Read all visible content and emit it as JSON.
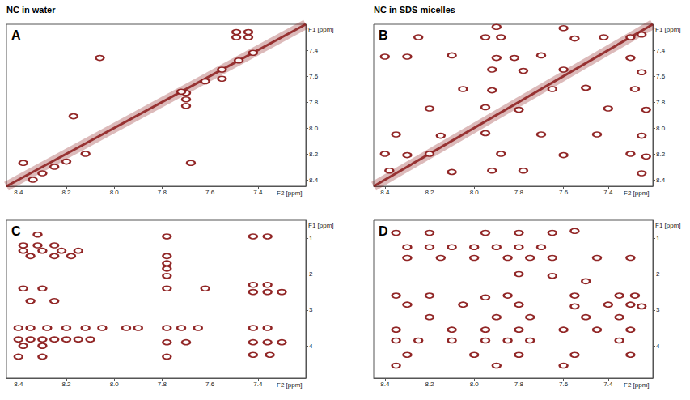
{
  "column_titles": [
    "NC in water",
    "NC in SDS micelles"
  ],
  "chart_data": [
    {
      "type": "scatter",
      "label": "A",
      "color": "#8b1a1a",
      "grid": false,
      "x_label": "F2 [ppm]",
      "y_label": "F1 [ppm]",
      "xlim": [
        7.2,
        8.45
      ],
      "xticks": [
        8.4,
        8.2,
        {
          "value": 8.0,
          "label": "8.0"
        },
        7.8,
        7.6,
        7.4
      ],
      "ylim": [
        7.2,
        8.45
      ],
      "yticks": [
        7.4,
        7.6,
        7.8,
        {
          "value": 8.0,
          "label": "8.0"
        },
        8.2,
        8.4
      ],
      "diagonal": [
        [
          8.45,
          8.45
        ],
        [
          7.2,
          7.2
        ]
      ],
      "peaks": [
        [
          7.49,
          7.26
        ],
        [
          7.44,
          7.26
        ],
        [
          7.49,
          7.3
        ],
        [
          7.44,
          7.3
        ],
        [
          8.06,
          7.46
        ],
        [
          8.17,
          7.91
        ],
        [
          7.68,
          8.27
        ],
        [
          7.7,
          7.73
        ],
        [
          7.7,
          7.78
        ],
        [
          7.7,
          7.83
        ],
        [
          7.55,
          7.62
        ],
        [
          8.3,
          8.35
        ],
        [
          8.34,
          8.4
        ],
        [
          8.25,
          8.3
        ],
        [
          8.2,
          8.26
        ],
        [
          8.12,
          8.2
        ],
        [
          7.72,
          7.72
        ],
        [
          7.62,
          7.64
        ],
        [
          7.55,
          7.55
        ],
        [
          7.48,
          7.48
        ],
        [
          7.42,
          7.42
        ],
        [
          8.38,
          8.27
        ]
      ]
    },
    {
      "type": "scatter",
      "label": "B",
      "color": "#8b1a1a",
      "grid": false,
      "x_label": "F2 [ppm]",
      "y_label": "F1 [ppm]",
      "xlim": [
        7.2,
        8.45
      ],
      "xticks": [
        8.4,
        8.2,
        {
          "value": 8.0,
          "label": "8.0"
        },
        7.8,
        7.6,
        7.4
      ],
      "ylim": [
        7.2,
        8.45
      ],
      "yticks": [
        7.4,
        7.6,
        7.8,
        {
          "value": 8.0,
          "label": "8.0"
        },
        8.2,
        8.4
      ],
      "diagonal": [
        [
          8.45,
          8.45
        ],
        [
          7.2,
          7.2
        ]
      ],
      "peaks": [
        [
          7.9,
          7.22
        ],
        [
          7.6,
          7.23
        ],
        [
          8.25,
          7.3
        ],
        [
          7.95,
          7.3
        ],
        [
          7.88,
          7.3
        ],
        [
          7.55,
          7.31
        ],
        [
          7.42,
          7.3
        ],
        [
          7.3,
          7.3
        ],
        [
          7.25,
          7.28
        ],
        [
          8.4,
          7.45
        ],
        [
          8.3,
          7.45
        ],
        [
          8.1,
          7.44
        ],
        [
          7.9,
          7.46
        ],
        [
          7.82,
          7.46
        ],
        [
          7.7,
          7.44
        ],
        [
          7.3,
          7.46
        ],
        [
          7.92,
          7.55
        ],
        [
          7.78,
          7.56
        ],
        [
          7.6,
          7.55
        ],
        [
          7.25,
          7.57
        ],
        [
          8.05,
          7.7
        ],
        [
          7.92,
          7.71
        ],
        [
          7.65,
          7.7
        ],
        [
          7.5,
          7.69
        ],
        [
          7.28,
          7.7
        ],
        [
          8.2,
          7.85
        ],
        [
          7.95,
          7.84
        ],
        [
          7.8,
          7.86
        ],
        [
          7.4,
          7.85
        ],
        [
          7.23,
          7.86
        ],
        [
          8.35,
          8.05
        ],
        [
          8.15,
          8.06
        ],
        [
          7.95,
          8.04
        ],
        [
          7.7,
          8.05
        ],
        [
          7.45,
          8.05
        ],
        [
          7.25,
          8.06
        ],
        [
          8.4,
          8.2
        ],
        [
          8.3,
          8.21
        ],
        [
          8.2,
          8.2
        ],
        [
          7.88,
          8.2
        ],
        [
          7.6,
          8.21
        ],
        [
          7.3,
          8.2
        ],
        [
          7.23,
          8.22
        ],
        [
          8.38,
          8.33
        ],
        [
          8.1,
          8.34
        ],
        [
          7.92,
          8.33
        ],
        [
          7.78,
          8.33
        ],
        [
          7.25,
          8.35
        ]
      ]
    },
    {
      "type": "scatter",
      "label": "C",
      "color": "#8b1a1a",
      "grid": false,
      "x_label": "F2 [ppm]",
      "y_label": "F1 [ppm]",
      "xlim": [
        7.2,
        8.45
      ],
      "xticks": [
        8.4,
        8.2,
        {
          "value": 8.0,
          "label": "8.0"
        },
        7.8,
        7.6,
        7.4
      ],
      "ylim": [
        0.5,
        4.9
      ],
      "yticks": [
        1,
        2,
        3,
        4
      ],
      "peaks": [
        [
          8.32,
          0.9
        ],
        [
          8.38,
          1.2
        ],
        [
          8.32,
          1.2
        ],
        [
          8.25,
          1.2
        ],
        [
          8.38,
          1.35
        ],
        [
          8.3,
          1.35
        ],
        [
          8.22,
          1.35
        ],
        [
          8.15,
          1.35
        ],
        [
          8.35,
          1.5
        ],
        [
          8.25,
          1.5
        ],
        [
          8.18,
          1.5
        ],
        [
          8.38,
          2.4
        ],
        [
          8.3,
          2.4
        ],
        [
          8.35,
          2.75
        ],
        [
          8.25,
          2.75
        ],
        [
          8.4,
          3.5
        ],
        [
          8.35,
          3.5
        ],
        [
          8.28,
          3.5
        ],
        [
          8.2,
          3.5
        ],
        [
          8.12,
          3.5
        ],
        [
          8.05,
          3.5
        ],
        [
          7.95,
          3.5
        ],
        [
          8.4,
          3.82
        ],
        [
          8.35,
          3.82
        ],
        [
          8.3,
          3.82
        ],
        [
          8.25,
          3.82
        ],
        [
          8.2,
          3.82
        ],
        [
          8.15,
          3.82
        ],
        [
          8.1,
          3.82
        ],
        [
          8.38,
          4.0
        ],
        [
          8.3,
          4.0
        ],
        [
          8.4,
          4.3
        ],
        [
          8.3,
          4.3
        ],
        [
          7.78,
          0.95
        ],
        [
          7.78,
          1.5
        ],
        [
          7.78,
          1.7
        ],
        [
          7.78,
          1.85
        ],
        [
          7.78,
          2.05
        ],
        [
          7.78,
          2.4
        ],
        [
          7.78,
          3.5
        ],
        [
          7.72,
          3.5
        ],
        [
          7.78,
          3.9
        ],
        [
          7.7,
          3.9
        ],
        [
          7.78,
          4.3
        ],
        [
          7.62,
          2.4
        ],
        [
          7.65,
          3.5
        ],
        [
          7.9,
          3.5
        ],
        [
          7.42,
          0.95
        ],
        [
          7.36,
          0.95
        ],
        [
          7.42,
          2.3
        ],
        [
          7.36,
          2.3
        ],
        [
          7.42,
          2.5
        ],
        [
          7.36,
          2.5
        ],
        [
          7.3,
          2.5
        ],
        [
          7.42,
          3.5
        ],
        [
          7.36,
          3.5
        ],
        [
          7.42,
          3.9
        ],
        [
          7.36,
          3.9
        ],
        [
          7.3,
          3.9
        ],
        [
          7.42,
          4.25
        ],
        [
          7.35,
          4.25
        ]
      ]
    },
    {
      "type": "scatter",
      "label": "D",
      "color": "#8b1a1a",
      "grid": false,
      "x_label": "F2 [ppm]",
      "y_label": "F1 [ppm]",
      "xlim": [
        7.2,
        8.45
      ],
      "xticks": [
        8.4,
        8.2,
        {
          "value": 8.0,
          "label": "8.0"
        },
        7.8,
        7.6,
        7.4
      ],
      "ylim": [
        0.5,
        4.9
      ],
      "yticks": [
        1,
        2,
        3,
        4
      ],
      "peaks": [
        [
          8.35,
          0.85
        ],
        [
          8.2,
          0.85
        ],
        [
          7.95,
          0.85
        ],
        [
          7.8,
          0.85
        ],
        [
          7.65,
          0.85
        ],
        [
          7.55,
          0.8
        ],
        [
          8.3,
          1.25
        ],
        [
          8.2,
          1.25
        ],
        [
          8.1,
          1.25
        ],
        [
          8.0,
          1.25
        ],
        [
          7.9,
          1.25
        ],
        [
          7.8,
          1.25
        ],
        [
          7.7,
          1.25
        ],
        [
          8.3,
          1.55
        ],
        [
          8.15,
          1.55
        ],
        [
          8.0,
          1.55
        ],
        [
          7.85,
          1.55
        ],
        [
          7.75,
          1.55
        ],
        [
          7.65,
          1.55
        ],
        [
          7.45,
          1.55
        ],
        [
          7.3,
          1.55
        ],
        [
          7.8,
          2.0
        ],
        [
          7.65,
          2.05
        ],
        [
          7.5,
          2.2
        ],
        [
          8.35,
          2.6
        ],
        [
          8.2,
          2.6
        ],
        [
          7.95,
          2.65
        ],
        [
          7.85,
          2.6
        ],
        [
          7.55,
          2.6
        ],
        [
          7.35,
          2.6
        ],
        [
          7.28,
          2.6
        ],
        [
          8.3,
          2.85
        ],
        [
          8.05,
          2.85
        ],
        [
          7.8,
          2.85
        ],
        [
          7.55,
          2.9
        ],
        [
          7.4,
          2.85
        ],
        [
          7.3,
          2.85
        ],
        [
          7.25,
          2.9
        ],
        [
          8.2,
          3.2
        ],
        [
          7.9,
          3.2
        ],
        [
          7.75,
          3.2
        ],
        [
          7.5,
          3.2
        ],
        [
          7.35,
          3.2
        ],
        [
          8.35,
          3.55
        ],
        [
          8.1,
          3.55
        ],
        [
          7.95,
          3.55
        ],
        [
          7.8,
          3.55
        ],
        [
          7.6,
          3.55
        ],
        [
          7.45,
          3.55
        ],
        [
          7.3,
          3.55
        ],
        [
          8.35,
          3.85
        ],
        [
          8.25,
          3.85
        ],
        [
          8.1,
          3.85
        ],
        [
          7.95,
          3.85
        ],
        [
          7.85,
          3.85
        ],
        [
          7.75,
          3.85
        ],
        [
          7.35,
          3.85
        ],
        [
          8.3,
          4.25
        ],
        [
          8.0,
          4.25
        ],
        [
          7.8,
          4.25
        ],
        [
          7.55,
          4.25
        ],
        [
          7.3,
          4.25
        ],
        [
          8.35,
          4.55
        ],
        [
          7.9,
          4.55
        ],
        [
          7.6,
          4.55
        ]
      ]
    }
  ]
}
